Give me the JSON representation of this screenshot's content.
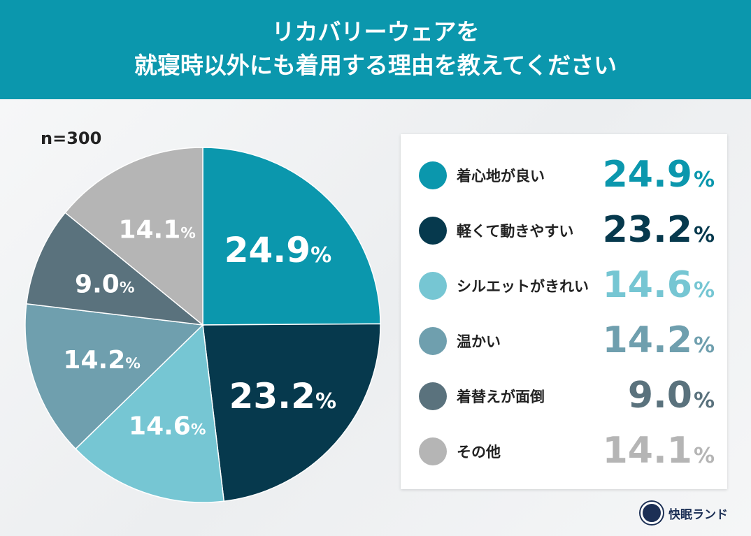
{
  "header": {
    "title_line1": "リカバリーウェアを",
    "title_line2": "就寝時以外にも着用する理由を教えてください"
  },
  "sample": "n=300",
  "logo": {
    "text": "快眠ランド"
  },
  "chart_data": {
    "type": "pie",
    "start": "top",
    "direction": "clockwise",
    "unit": "%",
    "slices": [
      {
        "label": "着心地が良い",
        "value": 24.9,
        "display": "24.9",
        "color": "#0b97ad"
      },
      {
        "label": "軽くて動きやすい",
        "value": 23.2,
        "display": "23.2",
        "color": "#06394d"
      },
      {
        "label": "シルエットがきれい",
        "value": 14.6,
        "display": "14.6",
        "color": "#76c6d3"
      },
      {
        "label": "温かい",
        "value": 14.2,
        "display": "14.2",
        "color": "#6f9fae"
      },
      {
        "label": "着替えが面倒",
        "value": 9.0,
        "display": "9.0",
        "color": "#5a727d"
      },
      {
        "label": "その他",
        "value": 14.1,
        "display": "14.1",
        "color": "#b5b5b5"
      }
    ],
    "legend": "right"
  }
}
